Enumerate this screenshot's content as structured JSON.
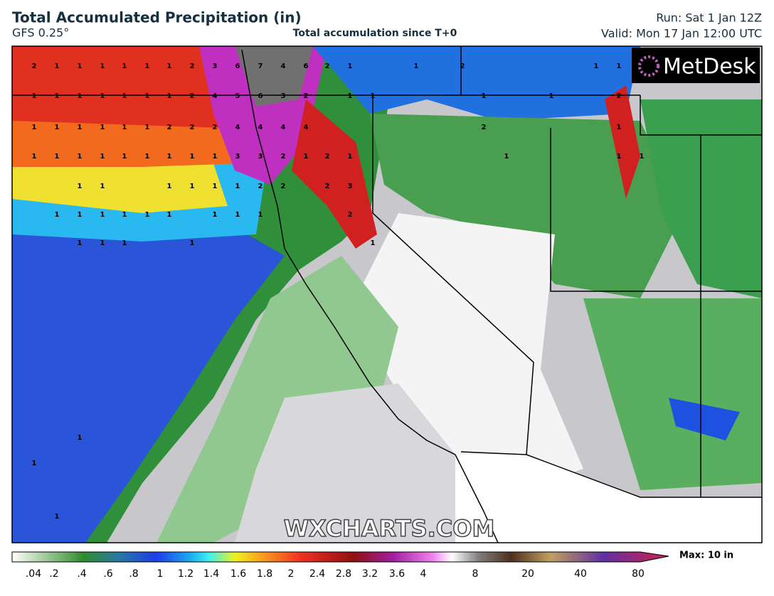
{
  "header": {
    "title": "Total Accumulated Precipitation (in)",
    "model": "GFS 0.25°",
    "subtitle": "Total accumulation since T+0",
    "run": "Run: Sat 1 Jan 12Z",
    "valid": "Valid: Mon 17 Jan 12:00 UTC"
  },
  "logo": "MetDesk",
  "watermark": "WXCHARTS.COM",
  "map_labels": [
    2,
    1,
    1,
    1,
    1,
    1,
    1,
    2,
    3,
    6,
    7,
    4,
    6,
    2,
    1,
    1,
    1,
    1,
    1,
    1,
    1,
    1,
    2,
    4,
    5,
    6,
    3,
    2,
    1,
    1,
    1,
    1,
    1,
    1,
    1,
    1,
    2,
    2,
    2,
    4,
    4,
    4,
    4,
    1,
    1,
    1,
    1,
    1,
    1,
    1,
    1,
    1,
    3,
    3,
    2,
    1,
    2,
    1,
    1,
    1,
    1,
    1,
    1,
    1,
    2,
    2,
    2,
    3,
    1,
    1,
    1,
    1,
    1,
    1,
    1,
    1,
    1,
    2,
    1,
    1,
    1,
    1,
    1,
    1,
    1,
    1,
    1,
    2,
    1,
    1,
    1,
    2,
    1,
    2,
    1,
    1,
    1,
    1
  ],
  "colorbar": {
    "labels": [
      {
        "value": 0.04,
        "label": ".04"
      },
      {
        "value": 0.2,
        "label": ".2"
      },
      {
        "value": 0.4,
        "label": ".4"
      },
      {
        "value": 0.6,
        "label": ".6"
      },
      {
        "value": 0.8,
        "label": ".8"
      },
      1,
      1.2,
      1.4,
      1.6,
      1.8,
      2,
      2.4,
      2.8,
      3.2,
      3.6,
      4,
      8,
      20,
      40,
      80
    ],
    "max": "Max: 10 in"
  }
}
